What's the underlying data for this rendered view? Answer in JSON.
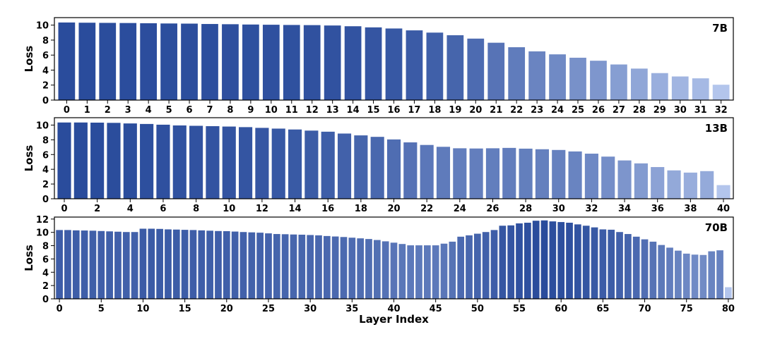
{
  "chart_data": [
    {
      "type": "bar",
      "panel_label": "7B",
      "ylabel": "Loss",
      "xlabel": "",
      "ylim": [
        0,
        11
      ],
      "yticks": [
        0,
        2,
        4,
        6,
        8,
        10
      ],
      "xtick_step": 1,
      "categories": [
        0,
        1,
        2,
        3,
        4,
        5,
        6,
        7,
        8,
        9,
        10,
        11,
        12,
        13,
        14,
        15,
        16,
        17,
        18,
        19,
        20,
        21,
        22,
        23,
        24,
        25,
        26,
        27,
        28,
        29,
        30,
        31,
        32
      ],
      "values": [
        10.35,
        10.32,
        10.3,
        10.28,
        10.25,
        10.22,
        10.2,
        10.15,
        10.12,
        10.08,
        10.05,
        10.02,
        10.0,
        9.95,
        9.85,
        9.7,
        9.55,
        9.3,
        9.0,
        8.65,
        8.2,
        7.65,
        7.05,
        6.5,
        6.1,
        5.65,
        5.25,
        4.75,
        4.2,
        3.6,
        3.15,
        2.9,
        2.05
      ],
      "legend": "none",
      "grid": false
    },
    {
      "type": "bar",
      "panel_label": "13B",
      "ylabel": "Loss",
      "xlabel": "",
      "ylim": [
        0,
        11
      ],
      "yticks": [
        0,
        2,
        4,
        6,
        8,
        10
      ],
      "xtick_step": 2,
      "categories": [
        0,
        1,
        2,
        3,
        4,
        5,
        6,
        7,
        8,
        9,
        10,
        11,
        12,
        13,
        14,
        15,
        16,
        17,
        18,
        19,
        20,
        21,
        22,
        23,
        24,
        25,
        26,
        27,
        28,
        29,
        30,
        31,
        32,
        33,
        34,
        35,
        36,
        37,
        38,
        39,
        40
      ],
      "values": [
        10.35,
        10.35,
        10.33,
        10.3,
        10.22,
        10.15,
        10.05,
        9.95,
        9.9,
        9.85,
        9.8,
        9.72,
        9.62,
        9.52,
        9.4,
        9.25,
        9.1,
        8.85,
        8.6,
        8.4,
        8.05,
        7.65,
        7.3,
        7.05,
        6.85,
        6.82,
        6.85,
        6.9,
        6.8,
        6.72,
        6.62,
        6.42,
        6.12,
        5.72,
        5.2,
        4.8,
        4.3,
        3.85,
        3.55,
        3.75,
        1.85
      ],
      "legend": "none",
      "grid": false
    },
    {
      "type": "bar",
      "panel_label": "70B",
      "ylabel": "Loss",
      "xlabel": "Layer Index",
      "ylim": [
        0,
        12.3
      ],
      "yticks": [
        0,
        2,
        4,
        6,
        8,
        10,
        12
      ],
      "xtick_step": 5,
      "categories": [
        0,
        1,
        2,
        3,
        4,
        5,
        6,
        7,
        8,
        9,
        10,
        11,
        12,
        13,
        14,
        15,
        16,
        17,
        18,
        19,
        20,
        21,
        22,
        23,
        24,
        25,
        26,
        27,
        28,
        29,
        30,
        31,
        32,
        33,
        34,
        35,
        36,
        37,
        38,
        39,
        40,
        41,
        42,
        43,
        44,
        45,
        46,
        47,
        48,
        49,
        50,
        51,
        52,
        53,
        54,
        55,
        56,
        57,
        58,
        59,
        60,
        61,
        62,
        63,
        64,
        65,
        66,
        67,
        68,
        69,
        70,
        71,
        72,
        73,
        74,
        75,
        76,
        77,
        78,
        79,
        80
      ],
      "values": [
        10.35,
        10.35,
        10.3,
        10.28,
        10.25,
        10.2,
        10.15,
        10.1,
        10.05,
        10.05,
        10.55,
        10.55,
        10.52,
        10.45,
        10.42,
        10.38,
        10.35,
        10.3,
        10.25,
        10.2,
        10.18,
        10.12,
        10.05,
        10.0,
        9.95,
        9.85,
        9.75,
        9.72,
        9.68,
        9.65,
        9.6,
        9.55,
        9.45,
        9.38,
        9.3,
        9.2,
        9.1,
        9.0,
        8.85,
        8.65,
        8.45,
        8.25,
        8.05,
        8.05,
        8.05,
        8.05,
        8.3,
        8.6,
        9.35,
        9.55,
        9.8,
        10.05,
        10.35,
        11.0,
        11.05,
        11.35,
        11.45,
        11.75,
        11.8,
        11.65,
        11.55,
        11.45,
        11.2,
        11.0,
        10.75,
        10.45,
        10.4,
        10.05,
        9.75,
        9.35,
        8.95,
        8.6,
        8.1,
        7.7,
        7.25,
        6.8,
        6.65,
        6.6,
        7.15,
        7.3,
        1.75
      ],
      "legend": "none",
      "grid": false
    }
  ],
  "colors": {
    "dark_bar": "#2a4c9c",
    "light_bar": "#b3c5ec",
    "frame": "#000000"
  }
}
